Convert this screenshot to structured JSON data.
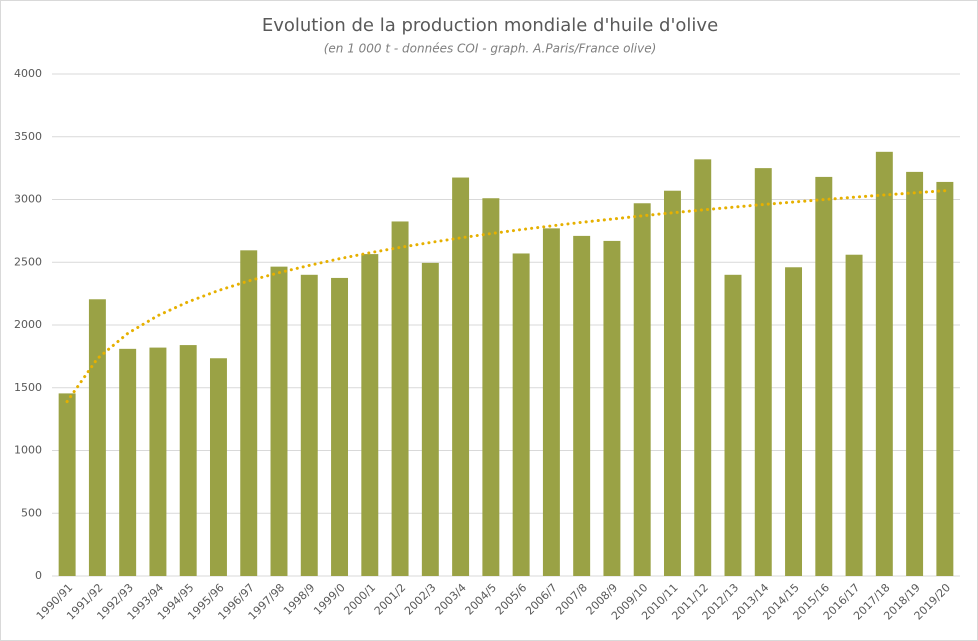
{
  "chart_data": {
    "type": "bar",
    "title": "Evolution de la production mondiale d'huile d'olive",
    "subtitle": "(en 1 000 t - données COI - graph. A.Paris/France olive)",
    "categories": [
      "1990/91",
      "1991/92",
      "1992/93",
      "1993/94",
      "1994/95",
      "1995/96",
      "1996/97",
      "1997/98",
      "1998/9",
      "1999/0",
      "2000/1",
      "2001/2",
      "2002/3",
      "2003/4",
      "2004/5",
      "2005/6",
      "2006/7",
      "2007/8",
      "2008/9",
      "2009/10",
      "2010/11",
      "2011/12",
      "2012/13",
      "2013/14",
      "2014/15",
      "2015/16",
      "2016/17",
      "2017/18",
      "2018/19",
      "2019/20"
    ],
    "values": [
      1455,
      2205,
      1810,
      1820,
      1840,
      1735,
      2595,
      2465,
      2400,
      2375,
      2565,
      2825,
      2495,
      3175,
      3010,
      2570,
      2770,
      2710,
      2670,
      2970,
      3070,
      3320,
      2400,
      3250,
      2460,
      3180,
      2560,
      3380,
      3220,
      3140
    ],
    "color": "#9aa245",
    "trendline": {
      "color": "#e6b000",
      "values": [
        1390,
        1732,
        1933,
        2075,
        2185,
        2275,
        2351,
        2417,
        2475,
        2528,
        2575,
        2618,
        2657,
        2694,
        2728,
        2760,
        2790,
        2818,
        2844,
        2870,
        2894,
        2917,
        2939,
        2960,
        2980,
        2999,
        3018,
        3036,
        3053,
        3070
      ]
    },
    "ylim": [
      0,
      4000
    ],
    "yticks": [
      0,
      500,
      1000,
      1500,
      2000,
      2500,
      3000,
      3500,
      4000
    ],
    "grid": true
  }
}
